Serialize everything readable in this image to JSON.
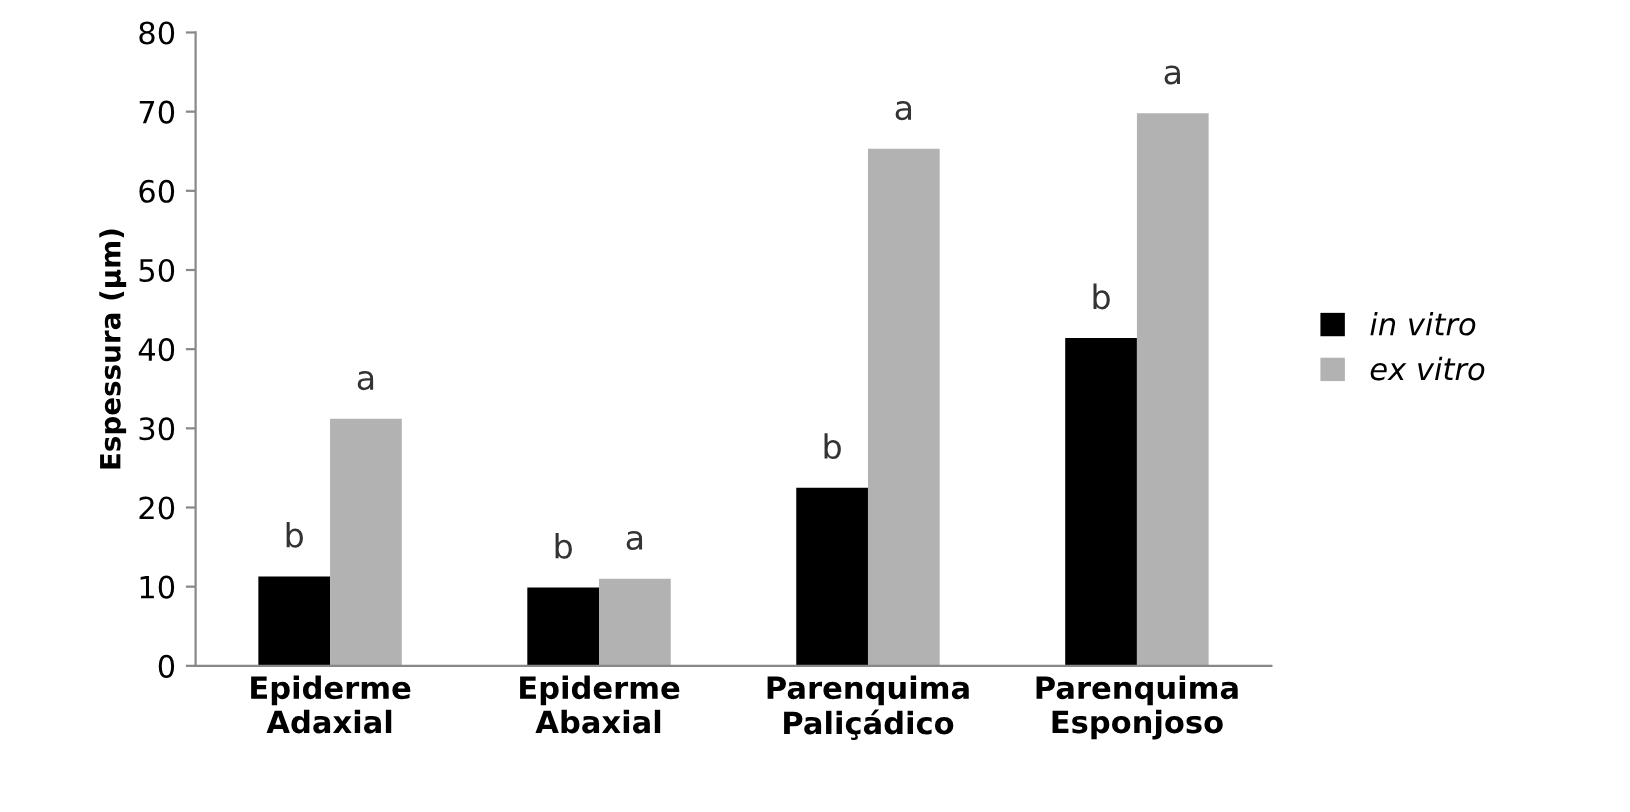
{
  "chart_data": {
    "type": "bar",
    "ylabel": "Espessura (µm)",
    "categories": [
      "Epiderme\nAdaxial",
      "Epiderme\nAbaxial",
      "Parenquima\nPaliçádico",
      "Parenquima\nEsponjoso"
    ],
    "series": [
      {
        "name": "in vitro",
        "color": "#000000",
        "values": [
          11.3,
          9.9,
          22.5,
          41.4
        ],
        "value_labels": [
          "b",
          "b",
          "b",
          "b"
        ]
      },
      {
        "name": "ex vitro",
        "color": "#b2b2b2",
        "values": [
          31.2,
          11.0,
          65.3,
          69.8
        ],
        "value_labels": [
          "a",
          "a",
          "a",
          "a"
        ]
      }
    ],
    "ylim": [
      0,
      80
    ],
    "yticks": [
      0,
      10,
      20,
      30,
      40,
      50,
      60,
      70,
      80
    ],
    "grid": false,
    "legend": "right"
  }
}
